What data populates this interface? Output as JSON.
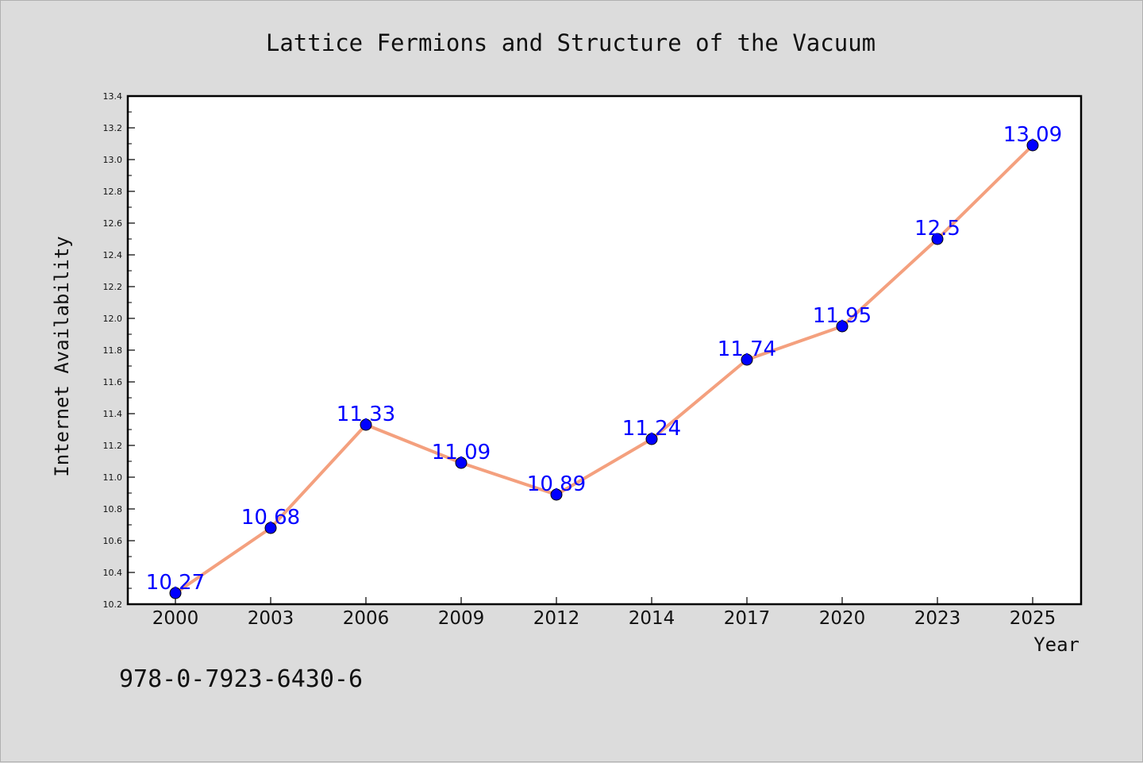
{
  "isbn": "978-0-7923-6430-6",
  "chart_data": {
    "type": "line",
    "title": "Lattice Fermions and Structure of the Vacuum",
    "xlabel": "Year",
    "ylabel": "Internet Availability",
    "categories": [
      "2000",
      "2003",
      "2006",
      "2009",
      "2012",
      "2014",
      "2017",
      "2020",
      "2023",
      "2025"
    ],
    "series": [
      {
        "values": [
          10.27,
          10.68,
          11.33,
          11.09,
          10.89,
          11.24,
          11.74,
          11.95,
          12.5,
          13.09
        ],
        "labels": [
          "10.27",
          "10.68",
          "11.33",
          "11.09",
          "10.89",
          "11.24",
          "11.74",
          "11.95",
          "12.5",
          "13.09"
        ]
      }
    ],
    "ylim": [
      10.2,
      13.4
    ],
    "yticks": [
      "10.2",
      "10.4",
      "10.6",
      "10.8",
      "11.0",
      "11.2",
      "11.4",
      "11.6",
      "11.8",
      "12.0",
      "12.2",
      "12.4",
      "12.6",
      "12.8",
      "13.0",
      "13.2",
      "13.4"
    ],
    "grid": false,
    "line_color": "#f4a07e",
    "marker_color": "#0000ff",
    "label_color": "#0000ff"
  }
}
